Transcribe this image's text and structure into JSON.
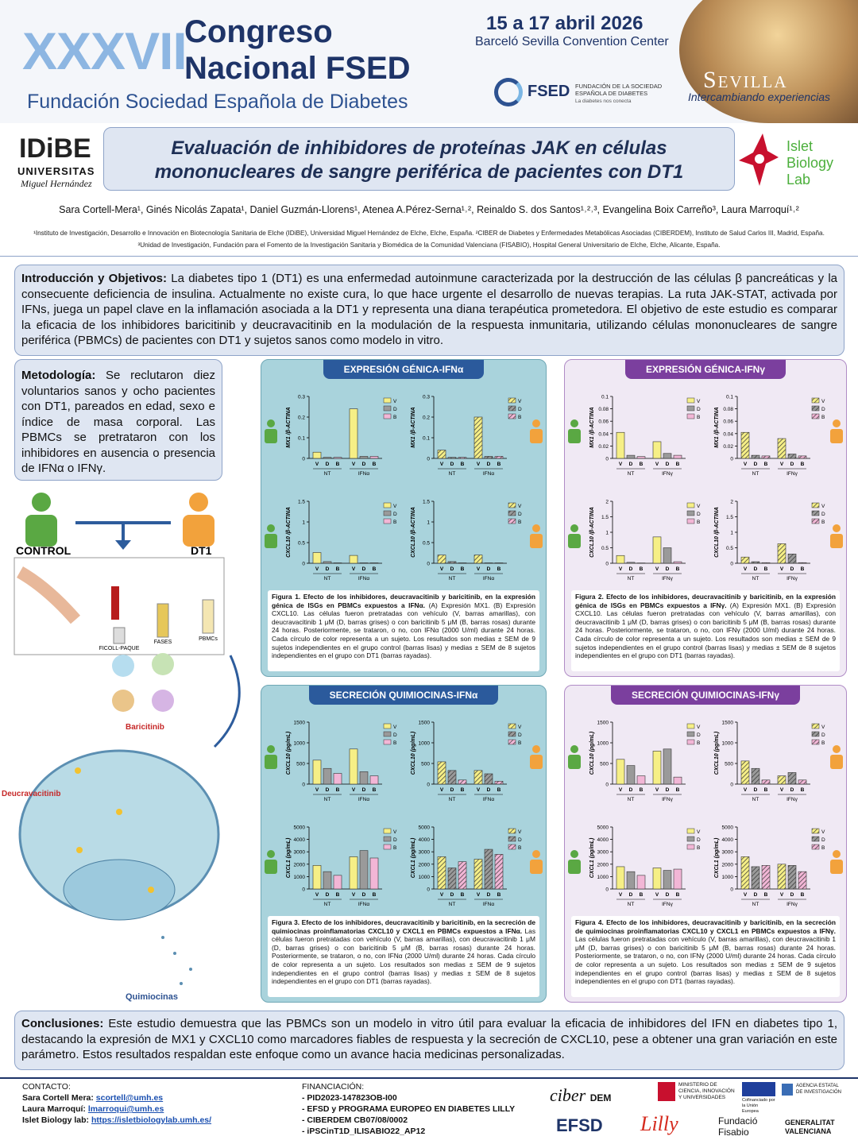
{
  "header": {
    "roman": "XXXVII",
    "congreso": "Congreso",
    "nacional": "Nacional FSED",
    "fundacion": "Fundación Sociedad Española de Diabetes",
    "dates": "15 a 17 abril 2026",
    "venue": "Barceló Sevilla Convention Center",
    "fsed": "FSED",
    "fsed_sub": "FUNDACIÓN DE LA SOCIEDAD ESPAÑOLA DE DIABETES",
    "fsed_tag": "La diabetes nos conecta",
    "sevilla": "Sevilla",
    "sevilla_tag": "Intercambiando experiencias"
  },
  "logos_top": {
    "idibe": "IDiBE",
    "universitas": "UNIVERSITAS",
    "umh": "Miguel Hernández",
    "islet": "Islet",
    "biology": "Biology",
    "lab": "Lab"
  },
  "title": {
    "line1": "Evaluación de inhibidores de proteínas JAK en células",
    "line2": "mononucleares de sangre periférica de pacientes con DT1"
  },
  "authors": "Sara Cortell-Mera¹, Ginés Nicolás Zapata¹, Daniel Guzmán-Llorens¹, Atenea A.Pérez-Serna¹˒², Reinaldo S. dos Santos¹˒²˒³, Evangelina Boix Carreño³, Laura Marroquí¹˒²",
  "affiliations": "¹Instituto de Investigación, Desarrollo e Innovación en Biotecnología Sanitaria de Elche (IDiBE), Universidad Miguel Hernández de Elche, Elche, España. ²CIBER de Diabetes y Enfermedades Metabólicas Asociadas (CIBERDEM), Instituto de Salud Carlos III, Madrid, España. ³Unidad de Investigación, Fundación para el Fomento de la Investigación Sanitaria y Biomédica de la Comunidad Valenciana (FISABIO), Hospital General Universitario de Elche, Elche, Alicante, España.",
  "intro": {
    "heading": "Introducción y Objetivos:",
    "body": "La diabetes tipo 1 (DT1) es una enfermedad autoinmune caracterizada por la destrucción de las células β pancreáticas y la consecuente deficiencia de insulina. Actualmente no existe cura, lo que hace urgente el desarrollo de nuevas terapias. La ruta JAK-STAT, activada por IFNs, juega un papel clave en la inflamación asociada a la DT1 y representa una diana terapéutica prometedora. El objetivo de este estudio es comparar la eficacia de los inhibidores baricitinib y deucravacitinib en la modulación de la respuesta inmunitaria, utilizando células mononucleares de sangre periférica (PBMCs) de pacientes con DT1 y sujetos sanos como modelo in vitro."
  },
  "methods": {
    "heading": "Metodología:",
    "body": "Se reclutaron diez voluntarios sanos y ocho pacientes con DT1, pareados en edad, sexo e índice de masa corporal. Las PBMCs se pretrataron con los inhibidores en ausencia o presencia de IFNα o IFNγ."
  },
  "diagram": {
    "control": "CONTROL",
    "dt1": "DT1",
    "ficoll": "FICOLL-PAQUE",
    "fases": "FASES",
    "pbmcs": "PBMCs",
    "baricitinib": "Baricitinib",
    "deucravacitinib": "Deucravacitinib",
    "quimiocinas": "Quimiocinas"
  },
  "figures": [
    {
      "title": "EXPRESIÓN GÉNICA-IFNα",
      "theme": "alpha",
      "categories": [
        "V",
        "D",
        "B"
      ],
      "groups": [
        "NT",
        "IFNα"
      ],
      "colors": [
        "#f6ef86",
        "#9a9a9a",
        "#f2b6d6"
      ],
      "caption_title": "Figura 1. Efecto de los inhibidores, deucravacitinib y baricitinib, en la expresión génica de ISGs en PBMCs expuestos a IFNα.",
      "caption": "(A) Expresión MX1. (B) Expresión CXCL10. Las células fueron pretratadas con vehículo (V, barras amarillas), con deucravacitinib 1 μM (D, barras grises) o con baricitinib 5 μM (B, barras rosas) durante 24 horas. Posteriormente, se trataron, o no, con IFNα (2000 U/ml) durante 24 horas. Cada círculo de color representa a un sujeto. Los resultados son medias ± SEM de 9 sujetos independientes en el grupo control (barras lisas) y medias ± SEM de 8 sujetos independientes en el grupo con DT1 (barras rayadas).",
      "subplots": [
        {
          "type": "bar",
          "ylabel": "MX1 /β-ACTINA",
          "pattern": "solid",
          "ylim": [
            0,
            0.3
          ],
          "yticks": [
            0,
            0.1,
            0.2,
            0.3
          ],
          "values": [
            0.03,
            0.005,
            0.005,
            0.24,
            0.01,
            0.01
          ]
        },
        {
          "type": "bar",
          "ylabel": "MX1 /β-ACTINA",
          "pattern": "hatched",
          "ylim": [
            0,
            0.3
          ],
          "yticks": [
            0,
            0.1,
            0.2,
            0.3
          ],
          "values": [
            0.04,
            0.005,
            0.005,
            0.2,
            0.01,
            0.01
          ]
        },
        {
          "type": "bar",
          "ylabel": "CXCL10 /β-ACTINA",
          "pattern": "solid",
          "ylim": [
            0,
            1.5
          ],
          "yticks": [
            0,
            0.5,
            1,
            1.5
          ],
          "values": [
            0.26,
            0.04,
            0.01,
            0.19,
            0.01,
            0.01
          ]
        },
        {
          "type": "bar",
          "ylabel": "CXCL10 /β-ACTINA",
          "pattern": "hatched",
          "ylim": [
            0,
            1.5
          ],
          "yticks": [
            0,
            0.5,
            1,
            1.5
          ],
          "values": [
            0.2,
            0.04,
            0.01,
            0.2,
            0.01,
            0.01
          ]
        }
      ]
    },
    {
      "title": "EXPRESIÓN GÉNICA-IFNγ",
      "theme": "gamma",
      "categories": [
        "V",
        "D",
        "B"
      ],
      "groups": [
        "NT",
        "IFNγ"
      ],
      "colors": [
        "#f6ef86",
        "#9a9a9a",
        "#f2b6d6"
      ],
      "caption_title": "Figura 2. Efecto de los inhibidores, deucravacitinib y baricitinib, en la expresión génica de ISGs en PBMCs expuestos a IFNγ.",
      "caption": "(A) Expresión MX1. (B) Expresión CXCL10. Las células fueron pretratadas con vehículo (V, barras amarillas), con deucravacitinib 1 μM (D, barras grises) o con baricitinib 5 μM (B, barras rosas) durante 24 horas. Posteriormente, se trataron, o no, con IFNγ (2000 U/ml) durante 24 horas. Cada círculo de color representa a un sujeto. Los resultados son medias ± SEM de 9 sujetos independientes en el grupo control (barras lisas) y medias ± SEM de 8 sujetos independientes en el grupo con DT1 (barras rayadas).",
      "subplots": [
        {
          "type": "bar",
          "ylabel": "MX1 /β-ACTINA",
          "pattern": "solid",
          "ylim": [
            0,
            0.1
          ],
          "yticks": [
            0,
            0.02,
            0.04,
            0.06,
            0.08,
            0.1
          ],
          "values": [
            0.042,
            0.005,
            0.003,
            0.027,
            0.008,
            0.005
          ]
        },
        {
          "type": "bar",
          "ylabel": "MX1 /β-ACTINA",
          "pattern": "hatched",
          "ylim": [
            0,
            0.1
          ],
          "yticks": [
            0,
            0.02,
            0.04,
            0.06,
            0.08,
            0.1
          ],
          "values": [
            0.042,
            0.005,
            0.004,
            0.032,
            0.007,
            0.004
          ]
        },
        {
          "type": "bar",
          "ylabel": "CXCL10 /β-ACTINA",
          "pattern": "solid",
          "ylim": [
            0,
            2
          ],
          "yticks": [
            0,
            0.5,
            1,
            1.5,
            2
          ],
          "values": [
            0.25,
            0.03,
            0.01,
            0.85,
            0.5,
            0.05
          ]
        },
        {
          "type": "bar",
          "ylabel": "CXCL10 /β-ACTINA",
          "pattern": "hatched",
          "ylim": [
            0,
            2
          ],
          "yticks": [
            0,
            0.5,
            1,
            1.5,
            2
          ],
          "values": [
            0.2,
            0.05,
            0.02,
            0.63,
            0.3,
            0.02
          ]
        }
      ]
    },
    {
      "title": "SECRECIÓN QUIMIOCINAS-IFNα",
      "theme": "alpha",
      "categories": [
        "V",
        "D",
        "B"
      ],
      "groups": [
        "NT",
        "IFNα"
      ],
      "colors": [
        "#f6ef86",
        "#9a9a9a",
        "#f2b6d6"
      ],
      "caption_title": "Figura 3. Efecto de los inhibidores, deucravacitinib y baricitinib, en la secreción de quimiocinas proinflamatorias CXCL10 y CXCL1 en PBMCs expuestos a IFNα.",
      "caption": "Las células fueron pretratadas con vehículo (V, barras amarillas), con deucravacitinib 1 μM (D, barras grises) o con baricitinib 5 μM (B, barras rosas) durante 24 horas. Posteriormente, se trataron, o no, con IFNα (2000 U/ml) durante 24 horas. Cada círculo de color representa a un sujeto. Los resultados son medias ± SEM de 9 sujetos independientes en el grupo control (barras lisas) y medias ± SEM de 8 sujetos independientes en el grupo con DT1 (barras rayadas).",
      "subplots": [
        {
          "type": "bar",
          "ylabel": "CXCL10 (pg/mL)",
          "pattern": "solid",
          "ylim": [
            0,
            1500
          ],
          "yticks": [
            0,
            500,
            1000,
            1500
          ],
          "values": [
            580,
            380,
            260,
            850,
            300,
            200
          ]
        },
        {
          "type": "bar",
          "ylabel": "CXCL10 (pg/mL)",
          "pattern": "hatched",
          "ylim": [
            0,
            1500
          ],
          "yticks": [
            0,
            500,
            1000,
            1500
          ],
          "values": [
            540,
            330,
            100,
            330,
            250,
            70
          ]
        },
        {
          "type": "bar",
          "ylabel": "CXCL1 (pg/mL)",
          "pattern": "solid",
          "ylim": [
            0,
            5000
          ],
          "yticks": [
            0,
            1000,
            2000,
            3000,
            4000,
            5000
          ],
          "values": [
            1900,
            1400,
            1100,
            2600,
            3100,
            2500
          ]
        },
        {
          "type": "bar",
          "ylabel": "CXCL1 (pg/mL)",
          "pattern": "hatched",
          "ylim": [
            0,
            5000
          ],
          "yticks": [
            0,
            1000,
            2000,
            3000,
            4000,
            5000
          ],
          "values": [
            2600,
            1700,
            2200,
            2400,
            3200,
            2800
          ]
        }
      ]
    },
    {
      "title": "SECRECIÓN QUIMIOCINAS-IFNγ",
      "theme": "gamma",
      "categories": [
        "V",
        "D",
        "B"
      ],
      "groups": [
        "NT",
        "IFNγ"
      ],
      "colors": [
        "#f6ef86",
        "#9a9a9a",
        "#f2b6d6"
      ],
      "caption_title": "Figura 4. Efecto de los inhibidores, deucravacitinib y baricitinib, en la secreción de quimiocinas proinflamatorias CXCL10 y CXCL1 en PBMCs expuestos a IFNγ.",
      "caption": "Las células fueron pretratadas con vehículo (V, barras amarillas), con deucravacitinib 1 μM (D, barras grises) o con baricitinib 5 μM (B, barras rosas) durante 24 horas. Posteriormente, se trataron, o no, con IFNγ (2000 U/ml) durante 24 horas. Cada círculo de color representa a un sujeto. Los resultados son medias ± SEM de 9 sujetos independientes en el grupo control (barras lisas) y medias ± SEM de 8 sujetos independientes en el grupo con DT1 (barras rayadas).",
      "subplots": [
        {
          "type": "bar",
          "ylabel": "CXCL10 (pg/mL)",
          "pattern": "solid",
          "ylim": [
            0,
            1500
          ],
          "yticks": [
            0,
            500,
            1000,
            1500
          ],
          "values": [
            600,
            450,
            200,
            800,
            850,
            170
          ]
        },
        {
          "type": "bar",
          "ylabel": "CXCL10 (pg/mL)",
          "pattern": "hatched",
          "ylim": [
            0,
            1500
          ],
          "yticks": [
            0,
            500,
            1000,
            1500
          ],
          "values": [
            560,
            380,
            100,
            200,
            280,
            100
          ]
        },
        {
          "type": "bar",
          "ylabel": "CXCL1 (pg/mL)",
          "pattern": "solid",
          "ylim": [
            0,
            5000
          ],
          "yticks": [
            0,
            1000,
            2000,
            3000,
            4000,
            5000
          ],
          "values": [
            1800,
            1400,
            1100,
            1700,
            1500,
            1600
          ]
        },
        {
          "type": "bar",
          "ylabel": "CXCL1 (pg/mL)",
          "pattern": "hatched",
          "ylim": [
            0,
            5000
          ],
          "yticks": [
            0,
            1000,
            2000,
            3000,
            4000,
            5000
          ],
          "values": [
            2600,
            1800,
            1900,
            2000,
            1900,
            1400
          ]
        }
      ]
    }
  ],
  "conclusion": {
    "heading": "Conclusiones:",
    "body": "Este estudio demuestra que las PBMCs son un modelo in vitro útil para evaluar la eficacia de inhibidores del IFN en diabetes tipo 1, destacando la expresión de MX1 y CXCL10 como marcadores fiables de respuesta y la secreción de CXCL10, pese a obtener una gran variación en este parámetro. Estos resultados respaldan este enfoque como un avance hacia medicinas personalizadas."
  },
  "contact": {
    "label": "CONTACTO:",
    "items": [
      {
        "name": "Sara Cortell Mera:",
        "link": "scortell@umh.es"
      },
      {
        "name": "Laura Marroquí:",
        "link": "lmarroqui@umh.es"
      },
      {
        "name": "Islet Biology lab:",
        "link": "https://isletbiologylab.umh.es/"
      }
    ]
  },
  "funding": {
    "label": "FINANCIACIÓN:",
    "items": [
      "- PID2023-147823OB-I00",
      "- EFSD y PROGRAMA EUROPEO EN DIABETES LILLY",
      "- CIBERDEM CB07/08/0002",
      "- iPSCinT1D_ILISABIO22_AP12"
    ]
  },
  "logos": {
    "ciber": "ciber",
    "dem": "DEM",
    "ministerio": "MINISTERIO DE CIENCIA, INNOVACIÓN Y UNIVERSIDADES",
    "ue": "Cofinanciado por la Unión Europea",
    "aei": "AGENCIA ESTATAL DE INVESTIGACIÓN",
    "efsd": "EFSD",
    "lilly": "Lilly",
    "fisabio": "Fundació Fisabio",
    "gva": "GENERALITAT VALENCIANA"
  }
}
